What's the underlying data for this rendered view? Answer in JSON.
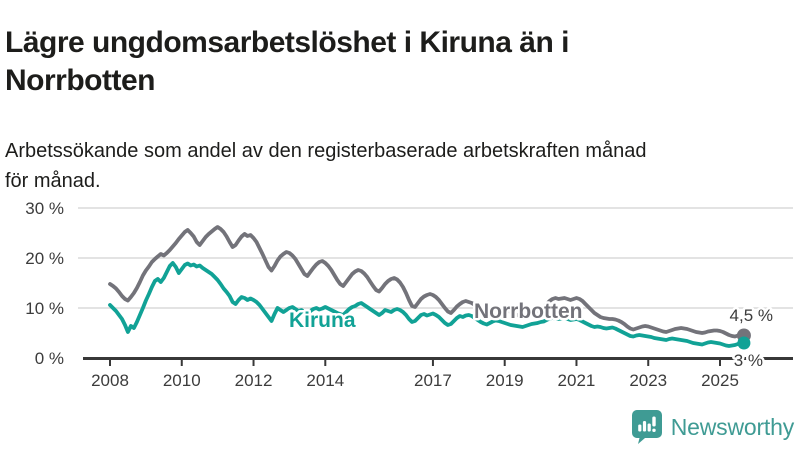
{
  "header": {
    "title_line1": "Lägre ungdomsarbetslöshet i Kiruna än i",
    "title_line2": "Norrbotten",
    "subtitle_line1": "Arbetssökande som andel av den registerbaserade arbetskraften månad",
    "subtitle_line2": "för månad."
  },
  "chart_data": {
    "type": "line",
    "title": "Lägre ungdomsarbetslöshet i Kiruna än i Norrbotten",
    "subtitle": "Arbetssökande som andel av den registerbaserade arbetskraften månad för månad.",
    "x_start_year": 2008,
    "points_per_year": 12,
    "x_end": "2025-09",
    "xlim": [
      2008,
      2025.75
    ],
    "ylim": [
      0,
      32
    ],
    "grid": true,
    "x_ticks": [
      2008,
      2010,
      2012,
      2014,
      2017,
      2019,
      2021,
      2023,
      2025
    ],
    "y_ticks": [
      {
        "v": 0,
        "label": "0 %"
      },
      {
        "v": 10,
        "label": "10 %"
      },
      {
        "v": 20,
        "label": "20 %"
      },
      {
        "v": 30,
        "label": "30 %"
      }
    ],
    "legend_position": "inline-labels",
    "series": [
      {
        "name": "Norrbotten",
        "color": "#73737a",
        "end_label": "4,5 %",
        "last_value": 4.5,
        "label_pos": {
          "x": 474,
          "y": 318
        },
        "end_label_pos": {
          "x": 773,
          "y": 321
        },
        "dot_r": 7,
        "values": [
          14.8,
          14.4,
          13.9,
          13.2,
          12.4,
          11.8,
          11.5,
          12.2,
          13.0,
          14.0,
          15.2,
          16.5,
          17.5,
          18.3,
          19.2,
          19.8,
          20.3,
          20.8,
          20.5,
          21.0,
          21.6,
          22.3,
          23.0,
          23.8,
          24.5,
          25.2,
          25.6,
          25.0,
          24.3,
          23.2,
          22.6,
          23.4,
          24.2,
          24.8,
          25.3,
          25.8,
          26.2,
          25.8,
          25.2,
          24.3,
          23.2,
          22.2,
          22.6,
          23.5,
          24.3,
          24.8,
          24.4,
          24.6,
          24.0,
          23.2,
          22.0,
          20.8,
          19.5,
          18.2,
          17.5,
          18.4,
          19.5,
          20.3,
          20.8,
          21.2,
          21.0,
          20.5,
          19.8,
          18.8,
          17.8,
          16.8,
          16.4,
          17.2,
          18.0,
          18.7,
          19.2,
          19.4,
          19.0,
          18.4,
          17.6,
          16.6,
          15.6,
          14.8,
          14.4,
          15.2,
          16.0,
          16.8,
          17.3,
          17.6,
          17.4,
          16.9,
          16.2,
          15.3,
          14.4,
          13.6,
          13.3,
          14.0,
          14.8,
          15.4,
          15.8,
          16.0,
          15.7,
          15.1,
          14.2,
          13.0,
          11.6,
          10.4,
          10.2,
          11.0,
          11.8,
          12.3,
          12.6,
          12.8,
          12.6,
          12.2,
          11.6,
          10.8,
          10.0,
          9.3,
          9.0,
          9.6,
          10.3,
          10.8,
          11.2,
          11.4,
          11.2,
          11.0,
          10.6,
          10.2,
          9.8,
          9.4,
          9.2,
          9.5,
          9.8,
          10.0,
          10.1,
          10.0,
          9.8,
          9.5,
          9.2,
          8.9,
          8.6,
          8.4,
          8.3,
          8.5,
          8.7,
          8.9,
          9.1,
          9.4,
          9.8,
          10.2,
          10.8,
          11.4,
          11.8,
          12.0,
          11.8,
          11.9,
          12.0,
          11.8,
          11.6,
          11.8,
          12.0,
          11.8,
          11.4,
          10.8,
          10.2,
          9.6,
          9.0,
          8.6,
          8.2,
          8.0,
          7.9,
          7.8,
          7.8,
          7.7,
          7.5,
          7.2,
          6.8,
          6.3,
          5.9,
          5.7,
          5.9,
          6.1,
          6.3,
          6.4,
          6.3,
          6.1,
          5.9,
          5.7,
          5.5,
          5.3,
          5.2,
          5.4,
          5.6,
          5.8,
          5.9,
          6.0,
          5.9,
          5.8,
          5.6,
          5.4,
          5.2,
          5.1,
          5.0,
          5.1,
          5.3,
          5.4,
          5.5,
          5.5,
          5.4,
          5.2,
          4.9,
          4.6,
          4.4,
          4.3,
          4.5,
          4.8,
          4.5
        ]
      },
      {
        "name": "Kiruna",
        "color": "#11a296",
        "end_label": "3 %",
        "last_value": 3.0,
        "label_pos": {
          "x": 289,
          "y": 327
        },
        "end_label_pos": {
          "x": 763,
          "y": 366
        },
        "dot_r": 6.5,
        "values": [
          10.6,
          10.0,
          9.4,
          8.6,
          7.8,
          6.6,
          5.2,
          6.4,
          6.0,
          7.2,
          8.6,
          10.0,
          11.5,
          12.8,
          14.2,
          15.4,
          15.8,
          15.2,
          16.0,
          17.2,
          18.4,
          19.0,
          18.2,
          17.0,
          17.8,
          18.6,
          18.9,
          18.5,
          18.7,
          18.3,
          18.5,
          18.0,
          17.6,
          17.2,
          16.8,
          16.2,
          15.6,
          14.8,
          13.9,
          13.2,
          12.4,
          11.2,
          10.8,
          11.6,
          12.2,
          12.0,
          11.6,
          11.9,
          11.6,
          11.2,
          10.6,
          9.8,
          9.0,
          8.2,
          7.4,
          8.8,
          10.0,
          9.6,
          9.2,
          9.6,
          10.0,
          10.2,
          9.8,
          9.4,
          9.6,
          9.2,
          8.8,
          9.4,
          9.8,
          10.0,
          9.7,
          9.9,
          10.2,
          9.9,
          9.6,
          9.3,
          9.0,
          8.8,
          8.6,
          9.2,
          9.8,
          10.2,
          10.4,
          10.8,
          11.0,
          10.6,
          10.2,
          9.8,
          9.4,
          9.0,
          8.6,
          9.0,
          9.6,
          9.4,
          9.2,
          9.6,
          9.8,
          9.6,
          9.2,
          8.6,
          7.8,
          7.2,
          7.4,
          8.0,
          8.6,
          8.8,
          8.5,
          8.7,
          8.9,
          8.6,
          8.2,
          7.6,
          7.0,
          6.6,
          6.8,
          7.4,
          8.0,
          8.4,
          8.2,
          8.5,
          8.6,
          8.4,
          8.0,
          7.6,
          7.2,
          6.9,
          6.7,
          7.0,
          7.3,
          7.5,
          7.4,
          7.2,
          7.0,
          6.8,
          6.6,
          6.5,
          6.4,
          6.3,
          6.2,
          6.4,
          6.6,
          6.8,
          6.9,
          7.0,
          7.2,
          7.3,
          7.6,
          7.9,
          8.0,
          7.9,
          7.8,
          7.9,
          8.0,
          7.8,
          7.6,
          7.7,
          7.8,
          7.6,
          7.3,
          7.0,
          6.7,
          6.4,
          6.2,
          6.3,
          6.2,
          6.0,
          5.9,
          6.0,
          6.1,
          5.9,
          5.6,
          5.3,
          5.0,
          4.7,
          4.4,
          4.3,
          4.5,
          4.6,
          4.5,
          4.4,
          4.3,
          4.2,
          4.0,
          3.9,
          3.8,
          3.7,
          3.6,
          3.8,
          3.9,
          3.8,
          3.7,
          3.6,
          3.5,
          3.4,
          3.2,
          3.0,
          2.9,
          2.8,
          2.7,
          2.9,
          3.1,
          3.2,
          3.1,
          3.0,
          2.9,
          2.7,
          2.5,
          2.4,
          2.5,
          2.6,
          2.8,
          3.1,
          3.0
        ]
      }
    ]
  },
  "footer": {
    "brand": "Newsworthy",
    "logo_icon": "bar-chart-speech-bubble-icon",
    "brand_color": "#3f9b94"
  }
}
